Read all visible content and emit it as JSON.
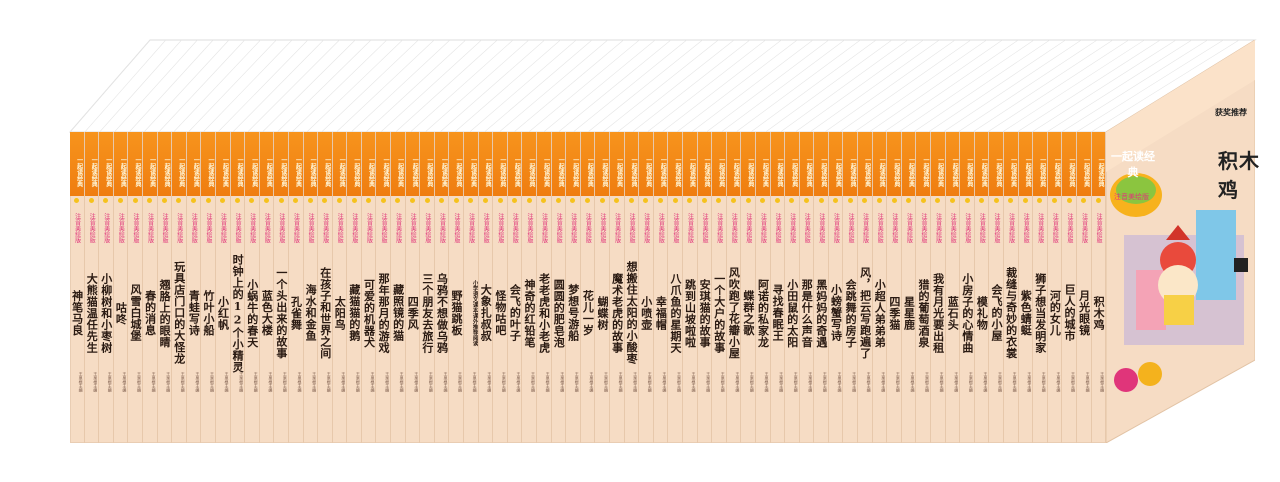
{
  "colors": {
    "band": "#f7941d",
    "spine_bg": "#f6dcc4",
    "title_text": "#2a1a12",
    "cover_bg": "#f6dcc4",
    "subtitle_pink": "#e0357a"
  },
  "series": {
    "logo": "一起读经典",
    "edition": "注音美绘版",
    "recommend": "获奖推荐"
  },
  "cover": {
    "title": "积木鸡",
    "logo": "一起读经典",
    "edition": "注音美绘版"
  },
  "book_titles": [
    "神笔马良",
    "大熊猫温任先生",
    "小柳树和小枣树",
    "咕咚",
    "风雪白城堡",
    "春的消息",
    "翘胳上的眼睛",
    "玩具店门口的大怪龙",
    "青蛙写诗",
    "竹叶小船",
    "小红帆",
    "时钟上的12个小精灵",
    "小蜗牛的春天",
    "蓝色大楼",
    "一个头出来的故事",
    "孔雀舞",
    "海水和金鱼",
    "在孩子和世界之间",
    "太阳鸟",
    "藏猫猫的鹅",
    "可爱的机器犬",
    "那年那月的游戏",
    "藏照镜的猫",
    "四季风",
    "三个朋友去旅行",
    "乌鸦不想做乌鸦",
    "野猫跳板",
    "小学语文课本课外推荐阅读",
    "大象扎叔叔",
    "怪物咕吧",
    "会飞的叶子",
    "神奇的红铅笔",
    "老老虎和小老虎",
    "圆圆的肥皂泡",
    "梦想号游船",
    "花儿一岁",
    "蝴蝶树",
    "魔术老虎的故事",
    "想搬住太阳的小酸枣",
    "小喷壶",
    "幸福帽",
    "八爪鱼的星期天",
    "跳到山坡啦啦",
    "安琪猫的故事",
    "一个大户的故事",
    "风吹跑了花瓣小屋",
    "蝶群之歌",
    "阿诺的私家龙",
    "寻找春眠王",
    "小田鼠的太阳",
    "那是什么声音",
    "黑妈妈的奇遇",
    "小螃蟹写诗",
    "会跳舞的房子",
    "风，把云写跑遍了",
    "小超人弟弟弟",
    "四季猫",
    "星星鹿",
    "猎的葡萄酒泉",
    "我有月光要出租",
    "蓝石头",
    "小房子的心情曲",
    "模礼物",
    "会飞的小屋",
    "裁缝与奇妙的衣裳",
    "紫色蜻蜓",
    "狮子想当发明家",
    "河的女儿",
    "巨人的城市",
    "月光眼镜",
    "积木鸡"
  ],
  "author_label": "王泉根主编"
}
